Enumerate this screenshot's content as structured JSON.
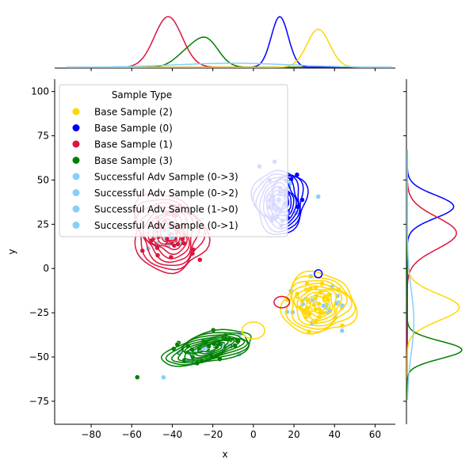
{
  "chart_data": {
    "type": "scatter",
    "subtype": "jointplot-kde",
    "xlabel": "x",
    "ylabel": "y",
    "xlim": [
      -98,
      70
    ],
    "ylim": [
      -88,
      107
    ],
    "xticks": [
      -80,
      -60,
      -40,
      -20,
      0,
      20,
      40,
      60
    ],
    "yticks": [
      -75,
      -50,
      -25,
      0,
      25,
      50,
      75,
      100
    ],
    "legend": {
      "title": "Sample Type",
      "placement": "upper-left",
      "entries": [
        {
          "label": "Base Sample (2)",
          "color": "#FFD700"
        },
        {
          "label": "Base Sample (0)",
          "color": "#0000FF"
        },
        {
          "label": "Base Sample (1)",
          "color": "#DC143C"
        },
        {
          "label": "Base Sample (3)",
          "color": "#008000"
        },
        {
          "label": "Successful Adv Sample (0->3)",
          "color": "#87CEFA"
        },
        {
          "label": "Successful Adv Sample (0->2)",
          "color": "#87CEFA"
        },
        {
          "label": "Successful Adv Sample (1->0)",
          "color": "#87CEFA"
        },
        {
          "label": "Successful Adv Sample (0->1)",
          "color": "#87CEFA"
        }
      ]
    },
    "clusters": [
      {
        "name": "Base Sample (0)",
        "color": "#0000FF",
        "center": [
          13,
          38
        ],
        "spread": [
          6.5,
          9
        ],
        "corr": 0,
        "levels": 9
      },
      {
        "name": "Base Sample (1)",
        "color": "#DC143C",
        "center": [
          -42,
          20
        ],
        "spread": [
          9,
          11
        ],
        "corr": -0.15,
        "levels": 9
      },
      {
        "name": "Base Sample (2)",
        "color": "#FFD700",
        "center": [
          32,
          -20
        ],
        "spread": [
          9,
          8.5
        ],
        "corr": 0,
        "levels": 9
      },
      {
        "name": "Base Sample (3)",
        "color": "#008000",
        "center": [
          -22,
          -45
        ],
        "spread": [
          11,
          5
        ],
        "corr": 0.55,
        "levels": 9
      }
    ],
    "marginal_x": [
      {
        "series": "Base Sample (1)",
        "color": "#DC143C",
        "mean": -42,
        "sd": 6.8,
        "peak": 1.0
      },
      {
        "series": "Base Sample (3)",
        "color": "#008000",
        "mean": -23,
        "sd": 6,
        "peak": 0.52,
        "extra": [
          [
            -33,
            6,
            0.25
          ]
        ]
      },
      {
        "series": "Base Sample (0)",
        "color": "#0000FF",
        "mean": 13,
        "sd": 4.2,
        "peak": 1.0
      },
      {
        "series": "Base Sample (2)",
        "color": "#FFD700",
        "mean": 32,
        "sd": 5.6,
        "peak": 0.75
      },
      {
        "series": "Successful Adv Samples",
        "color": "#87CEFA",
        "mean": -10,
        "sd": 28,
        "peak": 0.08
      }
    ],
    "marginal_y": [
      {
        "series": "Base Sample (0)",
        "color": "#0000FF",
        "mean": 35,
        "sd": 6.5,
        "peak": 0.85
      },
      {
        "series": "Base Sample (1)",
        "color": "#DC143C",
        "mean": 20,
        "sd": 9,
        "peak": 0.9
      },
      {
        "series": "Base Sample (2)",
        "color": "#FFD700",
        "mean": -22,
        "sd": 7.5,
        "peak": 0.95
      },
      {
        "series": "Base Sample (3)",
        "color": "#008000",
        "mean": -46,
        "sd": 5,
        "peak": 1.0
      },
      {
        "series": "Successful Adv Samples",
        "color": "#87CEFA",
        "mean": -30,
        "sd": 18,
        "peak": 0.12
      }
    ]
  }
}
